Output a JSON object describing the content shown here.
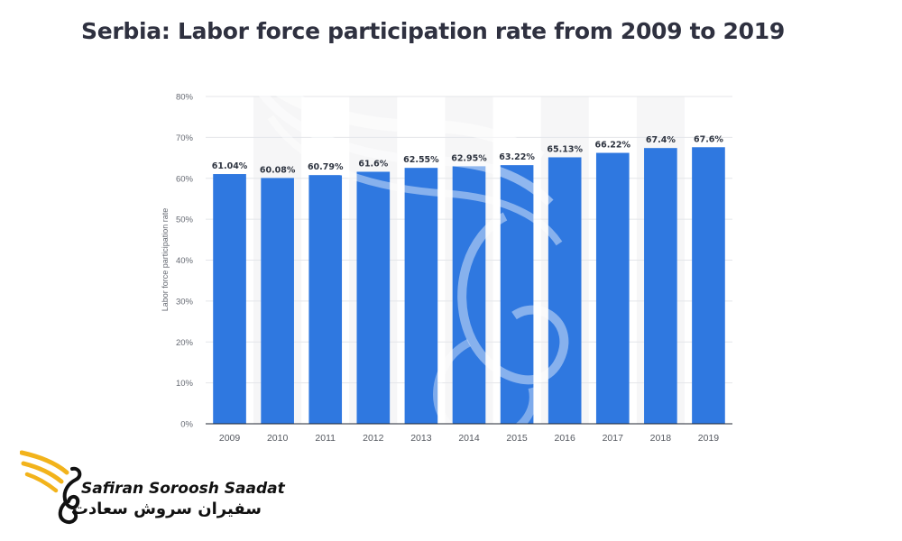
{
  "chart_data": {
    "type": "bar",
    "title": "Serbia: Labor force participation rate from 2009 to 2019",
    "xlabel": "",
    "ylabel": "Labor force participation rate",
    "categories": [
      "2009",
      "2010",
      "2011",
      "2012",
      "2013",
      "2014",
      "2015",
      "2016",
      "2017",
      "2018",
      "2019"
    ],
    "values": [
      61.04,
      60.08,
      60.79,
      61.6,
      62.55,
      62.95,
      63.22,
      65.13,
      66.22,
      67.4,
      67.6
    ],
    "value_labels": [
      "61.04%",
      "60.08%",
      "60.79%",
      "61.6%",
      "62.55%",
      "62.95%",
      "63.22%",
      "65.13%",
      "66.22%",
      "67.4%",
      "67.6%"
    ],
    "ylim": [
      0,
      80
    ],
    "yticks": [
      0,
      10,
      20,
      30,
      40,
      50,
      60,
      70,
      80
    ],
    "ytick_labels": [
      "0%",
      "10%",
      "20%",
      "30%",
      "40%",
      "50%",
      "60%",
      "70%",
      "80%"
    ],
    "grid": true,
    "colors": {
      "bar": "#2f78e0",
      "grid": "#e4e6ea",
      "band": "#f6f6f7",
      "axis": "#1f2430"
    }
  },
  "logo": {
    "name_en": "Safiran Soroosh Saadat",
    "name_fa": "سفیران سروش سعادت",
    "icon": "golden-wing-bird-icon",
    "colors": {
      "wing": "#f2b31b",
      "text": "#111111"
    }
  },
  "watermark": {
    "icon": "wing-bird-watermark-icon"
  }
}
